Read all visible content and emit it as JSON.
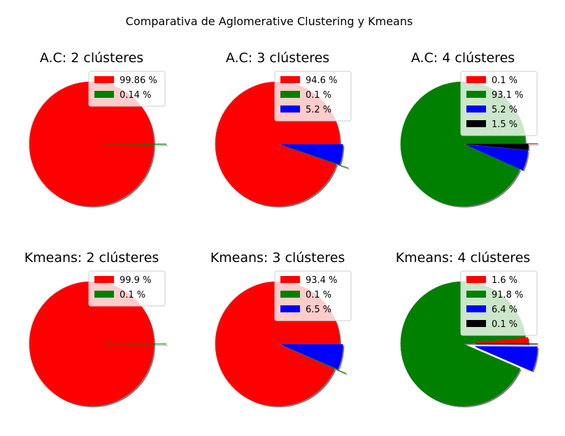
{
  "figure": {
    "suptitle": "Comparativa de Aglomerative Clustering y Kmeans"
  },
  "chart_data": [
    {
      "type": "pie",
      "title": "A.C: 2 clústeres",
      "labels": [
        "99.86 %",
        "0.14 %"
      ],
      "values": [
        99.86,
        0.14
      ],
      "colors": [
        "#ff0000",
        "#008000"
      ],
      "explode": [
        0,
        0.2
      ],
      "shadow": true,
      "legend": "upper-right"
    },
    {
      "type": "pie",
      "title": "A.C: 3 clústeres",
      "labels": [
        "94.6 %",
        "0.1 %",
        "5.2 %"
      ],
      "values": [
        94.6,
        0.1,
        5.2
      ],
      "colors": [
        "#ff0000",
        "#008000",
        "#0000ff"
      ],
      "explode": [
        0,
        0.2,
        0.05
      ],
      "shadow": true,
      "legend": "upper-right"
    },
    {
      "type": "pie",
      "title": "A.C: 4 clústeres",
      "labels": [
        "0.1 %",
        "93.1 %",
        "5.2 %",
        "1.5 %"
      ],
      "values": [
        0.1,
        93.1,
        5.2,
        1.5
      ],
      "colors": [
        "#ff0000",
        "#008000",
        "#0000ff",
        "#000000"
      ],
      "explode": [
        0.2,
        0,
        0.05,
        0.05
      ],
      "shadow": true,
      "legend": "upper-right"
    },
    {
      "type": "pie",
      "title": "Kmeans: 2 clústeres",
      "labels": [
        "99.9 %",
        "0.1 %"
      ],
      "values": [
        99.9,
        0.1
      ],
      "colors": [
        "#ff0000",
        "#008000"
      ],
      "explode": [
        0,
        0.2
      ],
      "shadow": true,
      "legend": "upper-right"
    },
    {
      "type": "pie",
      "title": "Kmeans: 3 clústeres",
      "labels": [
        "93.4 %",
        "0.1 %",
        "6.5 %"
      ],
      "values": [
        93.4,
        0.1,
        6.5
      ],
      "colors": [
        "#ff0000",
        "#008000",
        "#0000ff"
      ],
      "explode": [
        0,
        0.2,
        0.05
      ],
      "shadow": true,
      "legend": "upper-right"
    },
    {
      "type": "pie",
      "title": "Kmeans: 4 clústeres",
      "labels": [
        "1.6 %",
        "91.8 %",
        "6.4 %",
        "0.1 %"
      ],
      "values": [
        1.6,
        91.8,
        6.4,
        0.1
      ],
      "colors": [
        "#ff0000",
        "#008000",
        "#0000ff",
        "#000000"
      ],
      "explode": [
        0.05,
        0,
        0.2,
        0.2
      ],
      "shadow": true,
      "legend": "upper-right"
    }
  ]
}
